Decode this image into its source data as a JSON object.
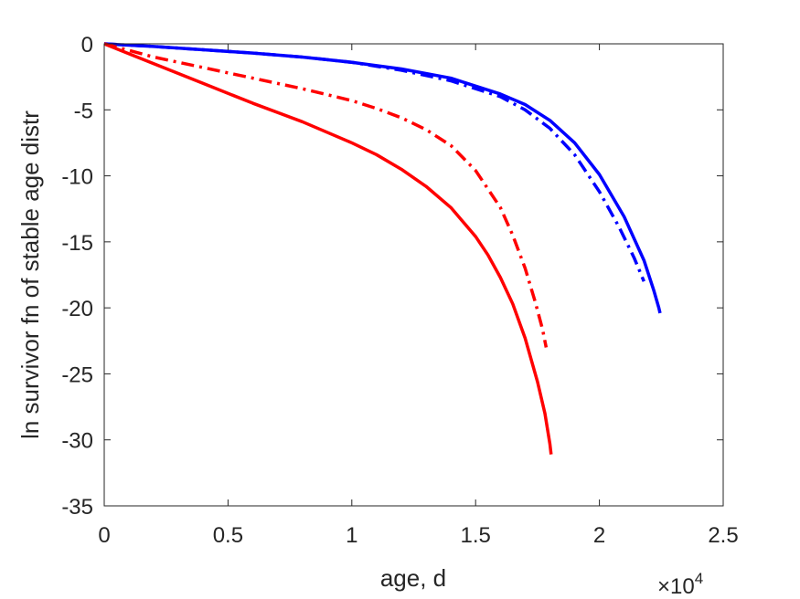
{
  "chart_data": {
    "type": "line",
    "title": "",
    "xlabel": "age, d",
    "ylabel": "ln survivor fn of stable age distr",
    "x_multiplier": "×10",
    "x_multiplier_exponent": "4",
    "xlim": [
      0,
      25000
    ],
    "ylim": [
      -35,
      0
    ],
    "xticks": [
      0,
      5000,
      10000,
      15000,
      20000,
      25000
    ],
    "xtick_labels": [
      "0",
      "0.5",
      "1",
      "1.5",
      "2",
      "2.5"
    ],
    "yticks": [
      0,
      -5,
      -10,
      -15,
      -20,
      -25,
      -30,
      -35
    ],
    "ytick_labels": [
      "0",
      "-5",
      "-10",
      "-15",
      "-20",
      "-25",
      "-30",
      "-35"
    ],
    "grid": false,
    "legend": "none",
    "series": [
      {
        "color": "#0000ff",
        "style": "solid",
        "x": [
          0,
          2000,
          4000,
          6000,
          8000,
          10000,
          12000,
          14000,
          16000,
          17000,
          18000,
          19000,
          20000,
          21000,
          21800,
          22200,
          22400,
          22450
        ],
        "y": [
          0,
          -0.2,
          -0.45,
          -0.7,
          -1.0,
          -1.4,
          -1.9,
          -2.6,
          -3.8,
          -4.6,
          -5.8,
          -7.5,
          -9.9,
          -13.1,
          -16.4,
          -18.7,
          -20.0,
          -20.4
        ]
      },
      {
        "color": "#0000ff",
        "style": "dashdot",
        "x": [
          0,
          2000,
          4000,
          6000,
          8000,
          10000,
          12000,
          14000,
          16000,
          17000,
          18000,
          19000,
          20000,
          20800,
          21400,
          21800
        ],
        "y": [
          0,
          -0.2,
          -0.45,
          -0.7,
          -1.0,
          -1.4,
          -2.0,
          -2.8,
          -4.0,
          -5.0,
          -6.4,
          -8.4,
          -11.2,
          -13.9,
          -16.2,
          -18.0
        ]
      },
      {
        "color": "#ff0000",
        "style": "solid",
        "x": [
          0,
          2000,
          4000,
          6000,
          8000,
          10000,
          11000,
          12000,
          13000,
          14000,
          15000,
          15500,
          16000,
          16500,
          17000,
          17500,
          17800,
          18000,
          18050
        ],
        "y": [
          0,
          -1.5,
          -3.0,
          -4.5,
          -5.9,
          -7.5,
          -8.4,
          -9.5,
          -10.8,
          -12.4,
          -14.6,
          -16.0,
          -17.7,
          -19.7,
          -22.3,
          -25.6,
          -28.0,
          -30.3,
          -31.1
        ]
      },
      {
        "color": "#ff0000",
        "style": "dashdot",
        "x": [
          0,
          2000,
          4000,
          6000,
          8000,
          10000,
          11000,
          12000,
          13000,
          14000,
          15000,
          16000,
          16500,
          17000,
          17400,
          17700,
          17850
        ],
        "y": [
          0,
          -1.0,
          -1.8,
          -2.6,
          -3.4,
          -4.3,
          -4.9,
          -5.6,
          -6.5,
          -7.7,
          -9.6,
          -12.4,
          -14.5,
          -17.0,
          -19.5,
          -21.6,
          -23.0
        ]
      }
    ]
  }
}
